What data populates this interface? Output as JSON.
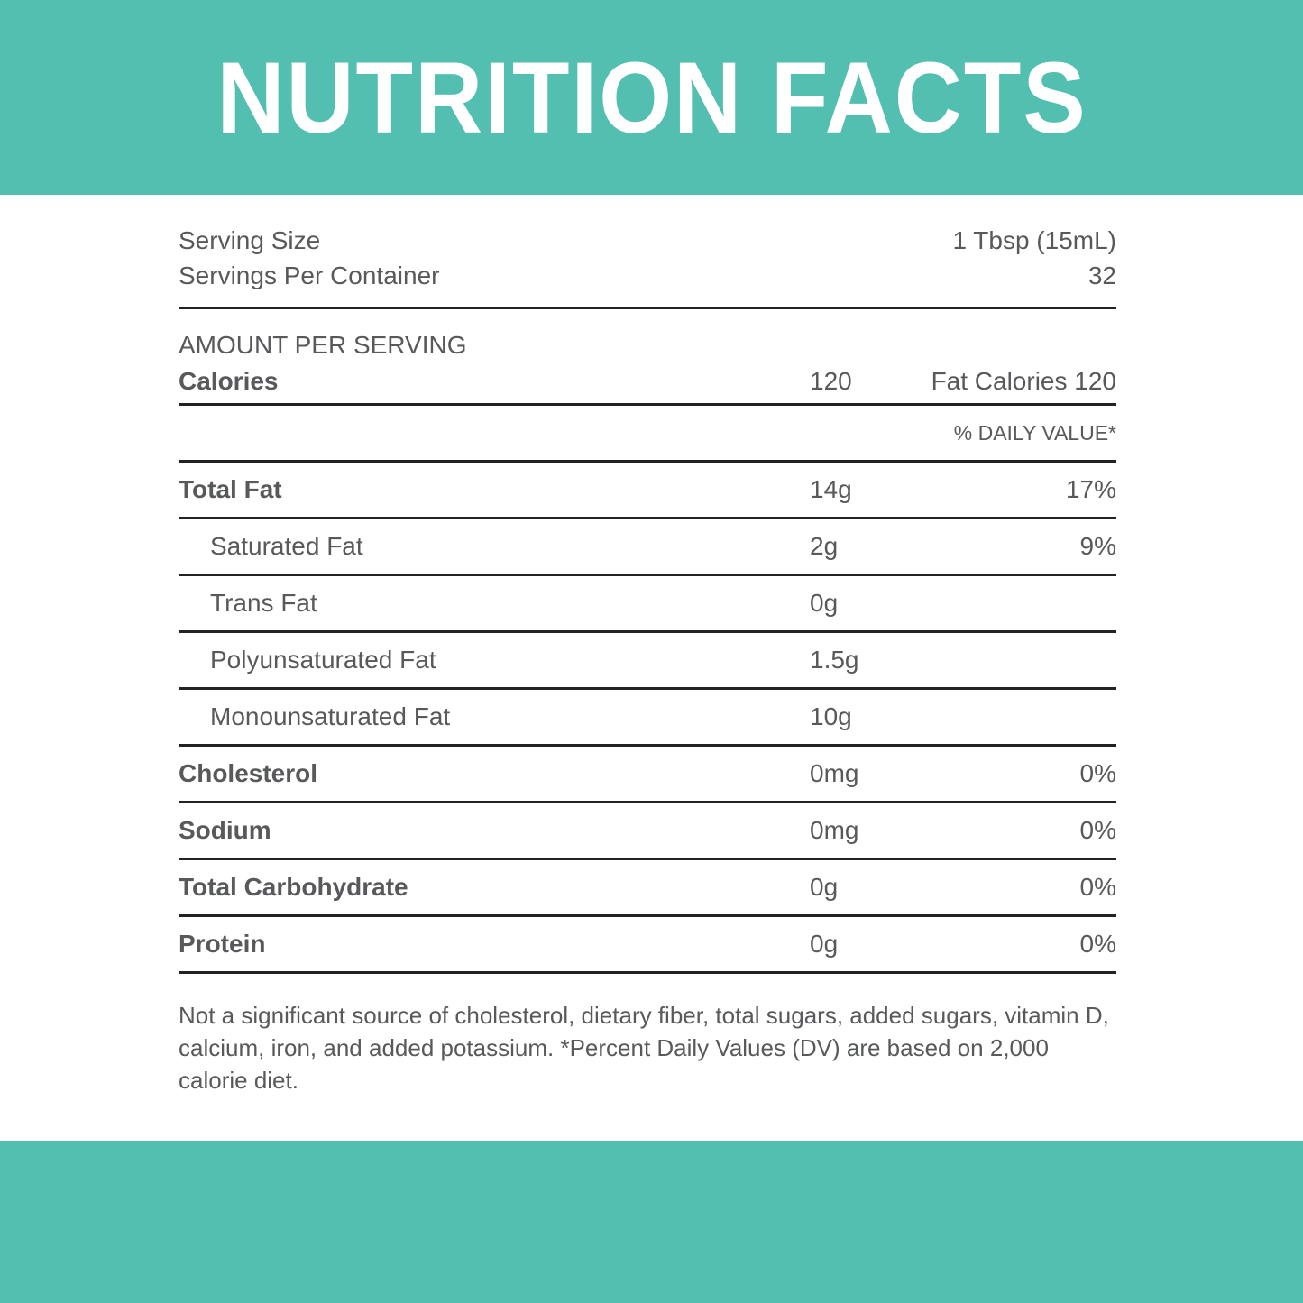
{
  "title": "NUTRITION FACTS",
  "serving": {
    "size_label": "Serving Size",
    "size_value": "1 Tbsp (15mL)",
    "per_container_label": "Servings Per Container",
    "per_container_value": "32"
  },
  "amount": {
    "heading": "AMOUNT PER SERVING",
    "calories_label": "Calories",
    "calories_value": "120",
    "fat_calories": "Fat Calories 120",
    "daily_value_heading": "% DAILY VALUE*"
  },
  "nutrients": [
    {
      "name": "Total Fat",
      "amount": "14g",
      "dv": "17%",
      "bold": true,
      "indent": false
    },
    {
      "name": "Saturated Fat",
      "amount": "2g",
      "dv": "9%",
      "bold": false,
      "indent": true
    },
    {
      "name": "Trans Fat",
      "amount": "0g",
      "dv": "",
      "bold": false,
      "indent": true
    },
    {
      "name": "Polyunsaturated Fat",
      "amount": "1.5g",
      "dv": "",
      "bold": false,
      "indent": true
    },
    {
      "name": "Monounsaturated Fat",
      "amount": "10g",
      "dv": "",
      "bold": false,
      "indent": true
    },
    {
      "name": "Cholesterol",
      "amount": "0mg",
      "dv": "0%",
      "bold": true,
      "indent": false
    },
    {
      "name": "Sodium",
      "amount": "0mg",
      "dv": "0%",
      "bold": true,
      "indent": false
    },
    {
      "name": "Total Carbohydrate",
      "amount": "0g",
      "dv": "0%",
      "bold": true,
      "indent": false
    },
    {
      "name": "Protein",
      "amount": "0g",
      "dv": "0%",
      "bold": true,
      "indent": false
    }
  ],
  "footnote": "Not a significant source of cholesterol, dietary fiber, total sugars, added sugars, vitamin D, calcium, iron, and added potassium. *Percent Daily Values (DV) are based on 2,000 calorie diet.",
  "colors": {
    "brand": "#52bfb0",
    "text": "#58595b",
    "rule": "#222222"
  }
}
